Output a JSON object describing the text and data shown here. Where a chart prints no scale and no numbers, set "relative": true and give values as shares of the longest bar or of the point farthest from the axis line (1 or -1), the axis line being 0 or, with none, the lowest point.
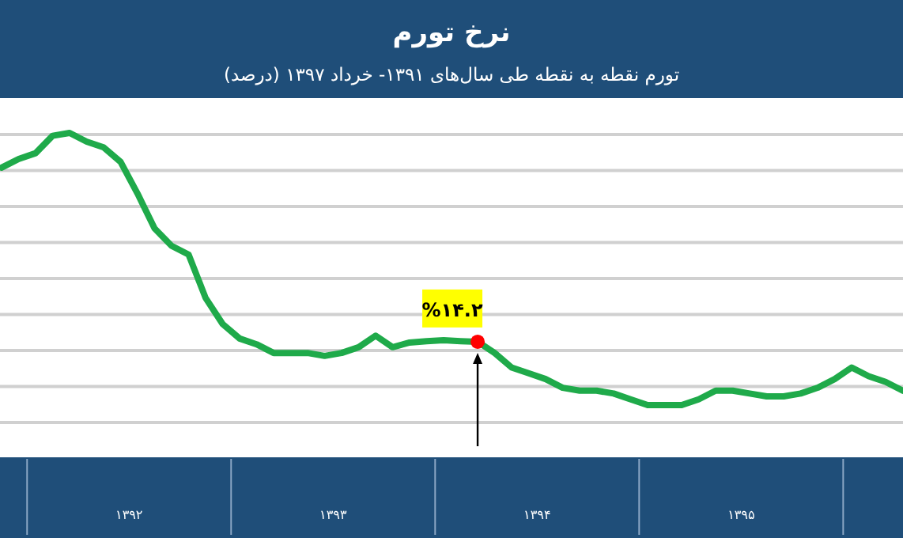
{
  "chart_data": {
    "type": "line",
    "title": "نرخ تورم",
    "subtitle": "تورم نقطه به نقطه طی سال‌های ۱۳۹۱- خرداد ۱۳۹۷ (درصد)",
    "relative": true,
    "grid": "y",
    "categories": [
      null,
      null,
      null,
      null,
      null,
      null,
      null,
      null,
      null,
      null,
      null,
      null,
      null,
      null,
      null,
      null,
      null,
      null,
      null,
      null,
      null,
      null,
      null,
      null,
      null,
      null,
      null,
      null,
      null,
      null,
      null,
      null,
      null,
      null,
      null,
      null,
      null,
      null,
      null,
      null,
      null,
      null,
      null,
      null,
      null,
      null,
      null,
      null,
      null,
      null,
      null,
      null,
      null,
      null
    ],
    "series": [
      {
        "type": "line",
        "color": "#1faa4a",
        "values": [
          0.88,
          0.91,
          0.93,
          0.99,
          1,
          0.97,
          0.95,
          0.9,
          0.79,
          0.67,
          0.61,
          0.58,
          0.43,
          0.34,
          0.29,
          0.27,
          0.24,
          0.24,
          0.24,
          0.23,
          0.24,
          0.26,
          0.3,
          0.26,
          0.276,
          0.281,
          0.284,
          0.281,
          0.279,
          0.24,
          0.19,
          0.17,
          0.15,
          0.12,
          0.11,
          0.11,
          0.1,
          0.08,
          0.06,
          0.06,
          0.06,
          0.08,
          0.11,
          0.11,
          0.1,
          0.09,
          0.09,
          0.1,
          0.12,
          0.15,
          0.19,
          0.16,
          0.14,
          0.11
        ]
      }
    ],
    "annotations": [
      {
        "text": "%۱۴.۲",
        "y": 0.279
      },
      "۱۳۹۲",
      "۱۳۹۳",
      "۱۳۹۴",
      "۱۳۹۵"
    ]
  }
}
